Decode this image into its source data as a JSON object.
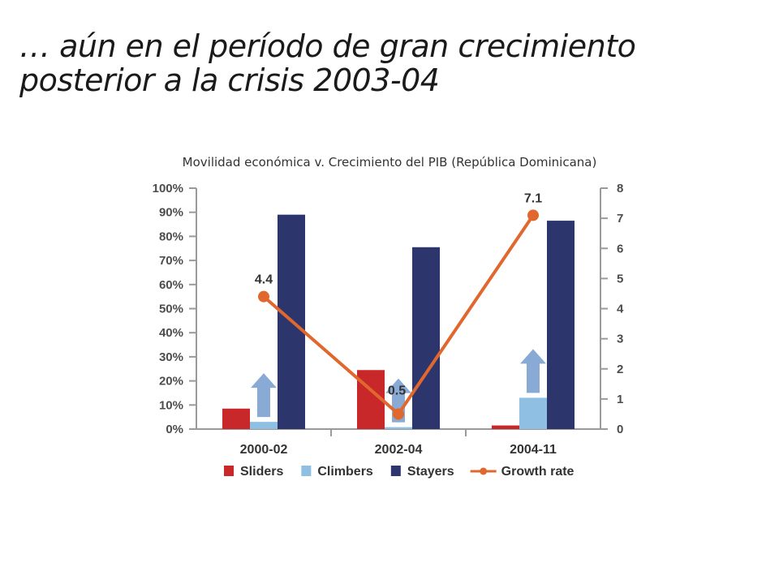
{
  "title": {
    "line1": "… aún en el período de gran crecimiento",
    "line2": "posterior a la crisis 2003-04"
  },
  "chart_data": {
    "type": "bar",
    "subtitle": "Movilidad económica v. Crecimiento del PIB (República Dominicana)",
    "categories": [
      "2000-02",
      "2002-04",
      "2004-11"
    ],
    "series": [
      {
        "name": "Sliders",
        "kind": "bar",
        "axis": "left",
        "color": "#c8282a",
        "values": [
          8.5,
          24.5,
          1.5
        ]
      },
      {
        "name": "Climbers",
        "kind": "bar",
        "axis": "left",
        "color": "#8fc0e4",
        "values": [
          3,
          0.8,
          13
        ]
      },
      {
        "name": "Stayers",
        "kind": "bar",
        "axis": "left",
        "color": "#2d366c",
        "values": [
          89,
          75.5,
          86.5
        ]
      },
      {
        "name": "Growth rate",
        "kind": "line",
        "axis": "right",
        "color": "#e0672e",
        "values": [
          4.4,
          0.5,
          7.1
        ],
        "labels": [
          "4.4",
          "0.5",
          "7.1"
        ]
      }
    ],
    "y_left": {
      "min": 0,
      "max": 100,
      "ticks": [
        "0%",
        "10%",
        "20%",
        "30%",
        "40%",
        "50%",
        "60%",
        "70%",
        "80%",
        "90%",
        "100%"
      ]
    },
    "y_right": {
      "min": 0,
      "max": 8,
      "ticks": [
        "0",
        "1",
        "2",
        "3",
        "4",
        "5",
        "6",
        "7",
        "8"
      ]
    },
    "legend": {
      "position": "bottom"
    },
    "arrow_color": "#8aaad6",
    "grid": false
  }
}
